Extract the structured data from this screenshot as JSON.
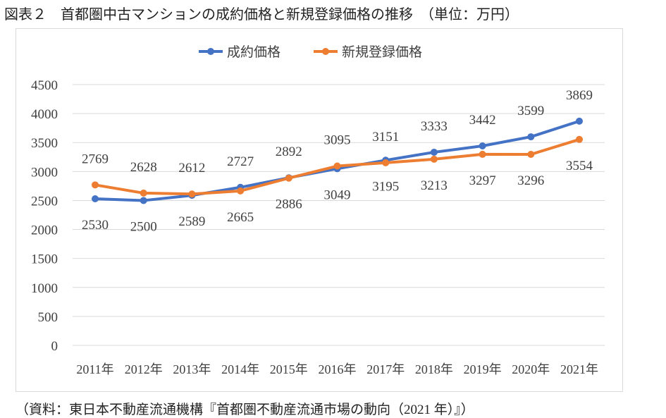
{
  "title": "図表２　首都圏中古マンションの成約価格と新規登録価格の推移　（単位：万円）",
  "footer": "（資料：東日本不動産流通機構『首都圏不動産流通市場の動向（2021 年）』）",
  "chart_data": {
    "type": "line",
    "categories": [
      "2011年",
      "2012年",
      "2013年",
      "2014年",
      "2015年",
      "2016年",
      "2017年",
      "2018年",
      "2019年",
      "2020年",
      "2021年"
    ],
    "ylim": [
      0,
      4500
    ],
    "yticks": [
      0,
      500,
      1000,
      1500,
      2000,
      2500,
      3000,
      3500,
      4000,
      4500
    ],
    "grid": true,
    "legend": "top",
    "series": [
      {
        "name": "成約価格",
        "color": "#4472C4",
        "values": [
          2530,
          2500,
          2589,
          2727,
          2892,
          3049,
          3195,
          3333,
          3442,
          3599,
          3869
        ]
      },
      {
        "name": "新規登録価格",
        "color": "#ED7D31",
        "values": [
          2769,
          2628,
          2612,
          2665,
          2886,
          3095,
          3151,
          3213,
          3297,
          3296,
          3554
        ]
      }
    ]
  }
}
